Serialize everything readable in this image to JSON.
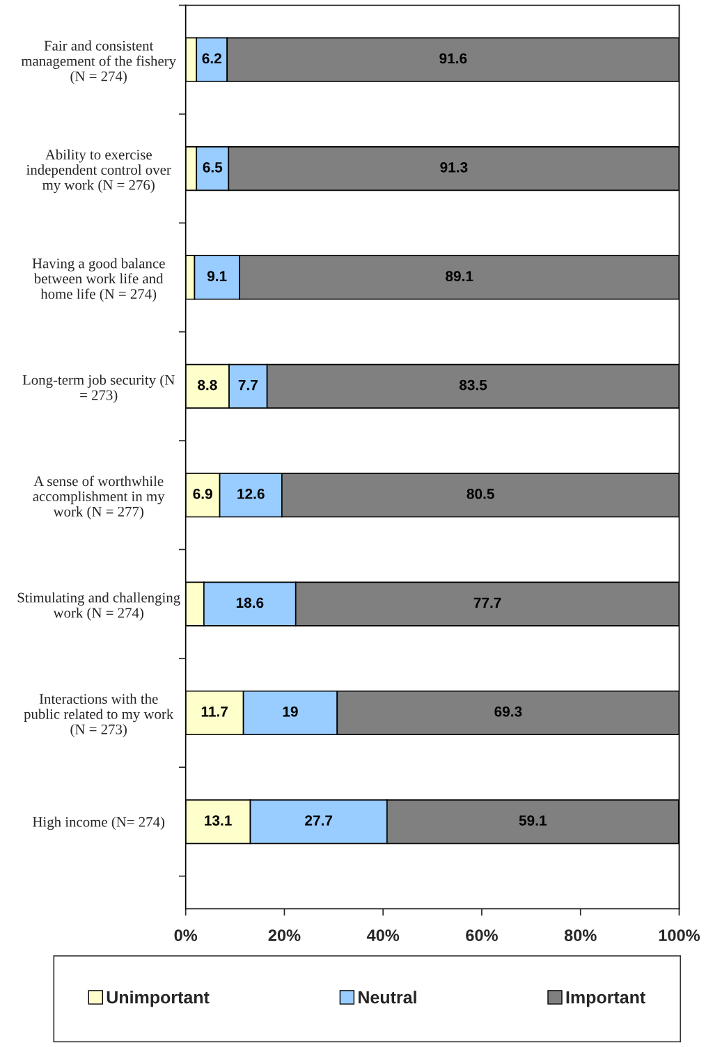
{
  "chart_data": {
    "type": "bar",
    "orientation": "horizontal",
    "stacked": true,
    "categories": [
      "Fair and consistent\nmanagement of the fishery\n(N = 274)",
      "Ability to exercise\nindependent control over\nmy work (N = 276)",
      "Having a good balance\nbetween work life and\nhome life (N = 274)",
      "Long-term job security (N\n= 273)",
      "A sense of worthwhile\naccomplishment in my\nwork (N = 277)",
      "Stimulating and challenging\nwork (N = 274)",
      "Interactions with the\npublic related to my work\n(N = 273)",
      "High income (N= 274)"
    ],
    "series": [
      {
        "name": "Unimportant",
        "color": "#ffffcc",
        "values": [
          2.2,
          2.2,
          1.8,
          8.8,
          6.9,
          3.7,
          11.7,
          13.1
        ],
        "value_labels": [
          null,
          null,
          null,
          "8.8",
          "6.9",
          null,
          "11.7",
          "13.1"
        ]
      },
      {
        "name": "Neutral",
        "color": "#99ccff",
        "values": [
          6.2,
          6.5,
          9.1,
          7.7,
          12.6,
          18.6,
          19,
          27.7
        ],
        "value_labels": [
          "6.2",
          "6.5",
          "9.1",
          "7.7",
          "12.6",
          "18.6",
          "19",
          "27.7"
        ]
      },
      {
        "name": "Important",
        "color": "#808080",
        "values": [
          91.6,
          91.3,
          89.1,
          83.5,
          80.5,
          77.7,
          69.3,
          59.1
        ],
        "value_labels": [
          "91.6",
          "91.3",
          "89.1",
          "83.5",
          "80.5",
          "77.7",
          "69.3",
          "59.1"
        ]
      }
    ],
    "xlim": [
      0,
      100
    ],
    "xticks": [
      {
        "value": 0,
        "label": "0%"
      },
      {
        "value": 20,
        "label": "20%"
      },
      {
        "value": 40,
        "label": "40%"
      },
      {
        "value": 60,
        "label": "60%"
      },
      {
        "value": 80,
        "label": "80%"
      },
      {
        "value": 100,
        "label": "100%"
      }
    ],
    "legend": "bottom",
    "grid": false
  }
}
